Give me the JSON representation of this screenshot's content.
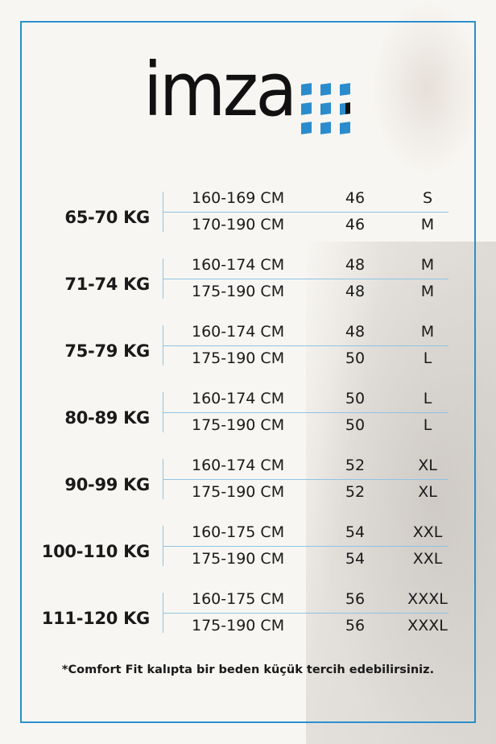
{
  "brand": {
    "logo_text": "imza",
    "accent": "#2b8fcd"
  },
  "size_chart": [
    {
      "weight": "65-70 KG",
      "rows": [
        {
          "height": "160-169 CM",
          "number": "46",
          "size": "S"
        },
        {
          "height": "170-190 CM",
          "number": "46",
          "size": "M"
        }
      ]
    },
    {
      "weight": "71-74 KG",
      "rows": [
        {
          "height": "160-174 CM",
          "number": "48",
          "size": "M"
        },
        {
          "height": "175-190 CM",
          "number": "48",
          "size": "M"
        }
      ]
    },
    {
      "weight": "75-79 KG",
      "rows": [
        {
          "height": "160-174 CM",
          "number": "48",
          "size": "M"
        },
        {
          "height": "175-190 CM",
          "number": "50",
          "size": "L"
        }
      ]
    },
    {
      "weight": "80-89 KG",
      "rows": [
        {
          "height": "160-174 CM",
          "number": "50",
          "size": "L"
        },
        {
          "height": "175-190 CM",
          "number": "50",
          "size": "L"
        }
      ]
    },
    {
      "weight": "90-99 KG",
      "rows": [
        {
          "height": "160-174 CM",
          "number": "52",
          "size": "XL"
        },
        {
          "height": "175-190 CM",
          "number": "52",
          "size": "XL"
        }
      ]
    },
    {
      "weight": "100-110 KG",
      "rows": [
        {
          "height": "160-175 CM",
          "number": "54",
          "size": "XXL"
        },
        {
          "height": "175-190 CM",
          "number": "54",
          "size": "XXL"
        }
      ]
    },
    {
      "weight": "111-120 KG",
      "rows": [
        {
          "height": "160-175 CM",
          "number": "56",
          "size": "XXXL"
        },
        {
          "height": "175-190 CM",
          "number": "56",
          "size": "XXXL"
        }
      ]
    }
  ],
  "footnote": "*Comfort Fit kalıpta bir beden küçük tercih edebilirsiniz."
}
